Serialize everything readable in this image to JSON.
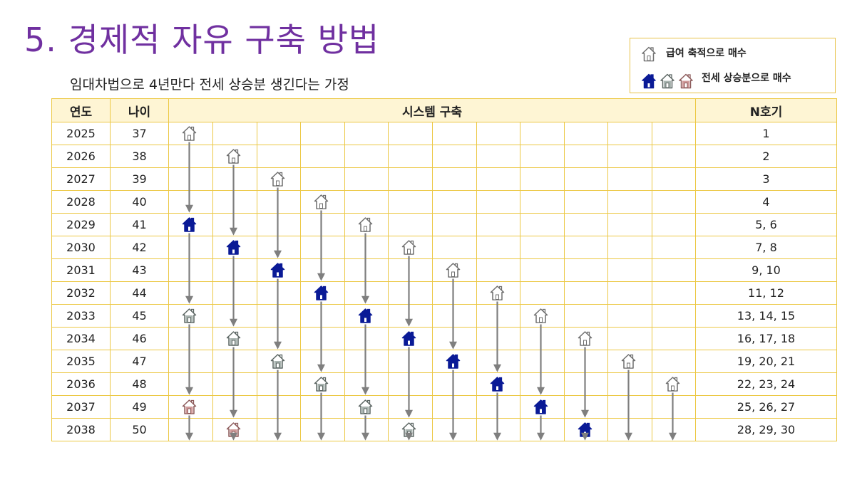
{
  "title": "5. 경제적 자유 구축 방법",
  "subtitle": "임대차법으로 4년만다 전세 상승분 생긴다는 가정",
  "legend": {
    "item1": {
      "icon": "house-outline-icon",
      "label": "급여 축적으로 매수"
    },
    "item2": {
      "icons": [
        "house-navy-icon",
        "house-gray-icon",
        "house-pink-icon"
      ],
      "label": "전세 상승분으로 매수"
    }
  },
  "colors": {
    "title": "#7030a0",
    "border": "#ecc844",
    "header_bg": "#fef5d4",
    "arrow": "#7f7f7f",
    "navy": "#0a1a96",
    "gray": "#a9b4b0",
    "pink": "#d09a9a",
    "outline": "#6f6f6f"
  },
  "table": {
    "headers": {
      "year": "연도",
      "age": "나이",
      "system": "시스템 구축",
      "n": "N호기"
    },
    "rows": [
      {
        "year": "2025",
        "age": "37",
        "n": "1"
      },
      {
        "year": "2026",
        "age": "38",
        "n": "2"
      },
      {
        "year": "2027",
        "age": "39",
        "n": "3"
      },
      {
        "year": "2028",
        "age": "40",
        "n": "4"
      },
      {
        "year": "2029",
        "age": "41",
        "n": "5, 6"
      },
      {
        "year": "2030",
        "age": "42",
        "n": "7, 8"
      },
      {
        "year": "2031",
        "age": "43",
        "n": "9, 10"
      },
      {
        "year": "2032",
        "age": "44",
        "n": "11, 12"
      },
      {
        "year": "2033",
        "age": "45",
        "n": "13, 14, 15"
      },
      {
        "year": "2034",
        "age": "46",
        "n": "16, 17, 18"
      },
      {
        "year": "2035",
        "age": "47",
        "n": "19, 20, 21"
      },
      {
        "year": "2036",
        "age": "48",
        "n": "22, 23, 24"
      },
      {
        "year": "2037",
        "age": "49",
        "n": "25, 26, 27"
      },
      {
        "year": "2038",
        "age": "50",
        "n": "28, 29, 30"
      }
    ],
    "system_columns": [
      [
        "outline",
        "",
        "",
        "",
        "navy",
        "",
        "",
        "",
        "gray",
        "",
        "",
        "",
        "pink",
        ""
      ],
      [
        "",
        "outline",
        "",
        "",
        "",
        "navy",
        "",
        "",
        "",
        "gray",
        "",
        "",
        "",
        "pink"
      ],
      [
        "",
        "",
        "outline",
        "",
        "",
        "",
        "navy",
        "",
        "",
        "",
        "gray",
        "",
        "",
        ""
      ],
      [
        "",
        "",
        "",
        "outline",
        "",
        "",
        "",
        "navy",
        "",
        "",
        "",
        "gray",
        "",
        ""
      ],
      [
        "",
        "",
        "",
        "",
        "outline",
        "",
        "",
        "",
        "navy",
        "",
        "",
        "",
        "gray",
        ""
      ],
      [
        "",
        "",
        "",
        "",
        "",
        "outline",
        "",
        "",
        "",
        "navy",
        "",
        "",
        "",
        "gray"
      ],
      [
        "",
        "",
        "",
        "",
        "",
        "",
        "outline",
        "",
        "",
        "",
        "navy",
        "",
        "",
        ""
      ],
      [
        "",
        "",
        "",
        "",
        "",
        "",
        "",
        "outline",
        "",
        "",
        "",
        "navy",
        "",
        ""
      ],
      [
        "",
        "",
        "",
        "",
        "",
        "",
        "",
        "",
        "outline",
        "",
        "",
        "",
        "navy",
        ""
      ],
      [
        "",
        "",
        "",
        "",
        "",
        "",
        "",
        "",
        "",
        "outline",
        "",
        "",
        "",
        "navy"
      ],
      [
        "",
        "",
        "",
        "",
        "",
        "",
        "",
        "",
        "",
        "",
        "outline",
        "",
        "",
        ""
      ],
      [
        "",
        "",
        "",
        "",
        "",
        "",
        "",
        "",
        "",
        "",
        "",
        "outline",
        "",
        ""
      ]
    ]
  }
}
